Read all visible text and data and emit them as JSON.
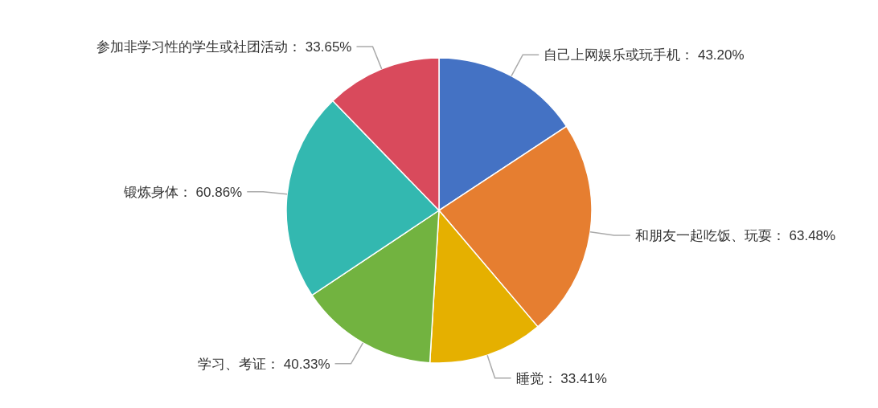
{
  "chart_data": {
    "type": "pie",
    "categories": [
      "自己上网娱乐或玩手机",
      "和朋友一起吃饭、玩耍",
      "睡觉",
      "学习、考证",
      "锻炼身体",
      "参加非学习性的学生或社团活动"
    ],
    "values": [
      43.2,
      63.48,
      33.41,
      40.33,
      60.86,
      33.65
    ],
    "value_labels": [
      "43.20%",
      "63.48%",
      "33.41%",
      "40.33%",
      "60.86%",
      "33.65%"
    ],
    "colors": [
      "#4472c4",
      "#e67e30",
      "#e5b000",
      "#72b340",
      "#33b8b0",
      "#d94a5c"
    ]
  }
}
